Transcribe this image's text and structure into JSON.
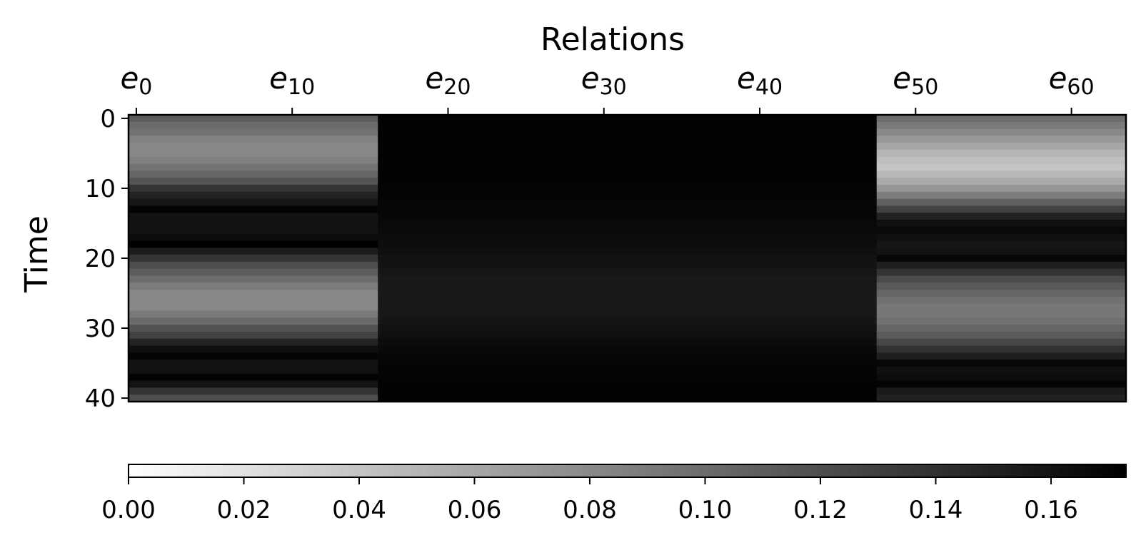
{
  "chart_data": [
    {
      "type": "heatmap",
      "xlabel": "Relations",
      "ylabel": "Time",
      "x_categories": [
        "e0",
        "e1",
        "e2",
        "e3",
        "e4",
        "e5",
        "e6",
        "e7",
        "e8",
        "e9",
        "e10",
        "e11",
        "e12",
        "e13",
        "e14",
        "e15",
        "e16",
        "e17",
        "e18",
        "e19",
        "e20",
        "e21",
        "e22",
        "e23",
        "e24",
        "e25",
        "e26",
        "e27",
        "e28",
        "e29",
        "e30",
        "e31",
        "e32",
        "e33",
        "e34",
        "e35",
        "e36",
        "e37",
        "e38",
        "e39",
        "e40",
        "e41",
        "e42",
        "e43",
        "e44",
        "e45",
        "e46",
        "e47",
        "e48",
        "e49",
        "e50",
        "e51",
        "e52",
        "e53",
        "e54",
        "e55",
        "e56",
        "e57",
        "e58",
        "e59",
        "e60",
        "e61",
        "e62",
        "e63"
      ],
      "x_ticks": [
        {
          "index": 0,
          "base": "e",
          "sub": "0"
        },
        {
          "index": 10,
          "base": "e",
          "sub": "10"
        },
        {
          "index": 20,
          "base": "e",
          "sub": "20"
        },
        {
          "index": 30,
          "base": "e",
          "sub": "30"
        },
        {
          "index": 40,
          "base": "e",
          "sub": "40"
        },
        {
          "index": 50,
          "base": "e",
          "sub": "50"
        },
        {
          "index": 60,
          "base": "e",
          "sub": "60"
        }
      ],
      "y_range": [
        0,
        40
      ],
      "y_ticks": [
        "0",
        "10",
        "20",
        "30",
        "40"
      ],
      "column_groups": [
        {
          "columns": [
            0,
            15
          ],
          "pattern": "left"
        },
        {
          "columns": [
            16,
            47
          ],
          "pattern": "middle"
        },
        {
          "columns": [
            48,
            63
          ],
          "pattern": "right"
        }
      ],
      "row_values": {
        "left": [
          0.11,
          0.1,
          0.095,
          0.085,
          0.081,
          0.081,
          0.086,
          0.095,
          0.104,
          0.116,
          0.138,
          0.149,
          0.158,
          0.17,
          0.16,
          0.16,
          0.16,
          0.165,
          0.173,
          0.153,
          0.137,
          0.12,
          0.11,
          0.1,
          0.089,
          0.081,
          0.081,
          0.081,
          0.091,
          0.101,
          0.117,
          0.129,
          0.149,
          0.163,
          0.17,
          0.16,
          0.16,
          0.17,
          0.16,
          0.138,
          0.12
        ],
        "middle": [
          0.171,
          0.171,
          0.171,
          0.171,
          0.171,
          0.171,
          0.171,
          0.171,
          0.171,
          0.171,
          0.17,
          0.17,
          0.169,
          0.169,
          0.168,
          0.167,
          0.166,
          0.165,
          0.164,
          0.163,
          0.161,
          0.16,
          0.158,
          0.157,
          0.156,
          0.156,
          0.156,
          0.156,
          0.157,
          0.159,
          0.161,
          0.163,
          0.165,
          0.167,
          0.168,
          0.169,
          0.17,
          0.17,
          0.171,
          0.171,
          0.171
        ],
        "right": [
          0.1,
          0.09,
          0.08,
          0.07,
          0.06,
          0.05,
          0.044,
          0.04,
          0.048,
          0.058,
          0.072,
          0.088,
          0.108,
          0.128,
          0.15,
          0.162,
          0.167,
          0.162,
          0.158,
          0.16,
          0.168,
          0.152,
          0.138,
          0.122,
          0.112,
          0.104,
          0.096,
          0.092,
          0.092,
          0.096,
          0.104,
          0.112,
          0.125,
          0.14,
          0.152,
          0.168,
          0.162,
          0.165,
          0.17,
          0.155,
          0.15
        ]
      },
      "colorbar": {
        "colormap": "gray_r",
        "range": [
          0.0,
          0.173
        ],
        "ticks": [
          "0.00",
          "0.02",
          "0.04",
          "0.06",
          "0.08",
          "0.10",
          "0.12",
          "0.14",
          "0.16"
        ],
        "orientation": "horizontal",
        "placement": "bottom"
      }
    }
  ]
}
